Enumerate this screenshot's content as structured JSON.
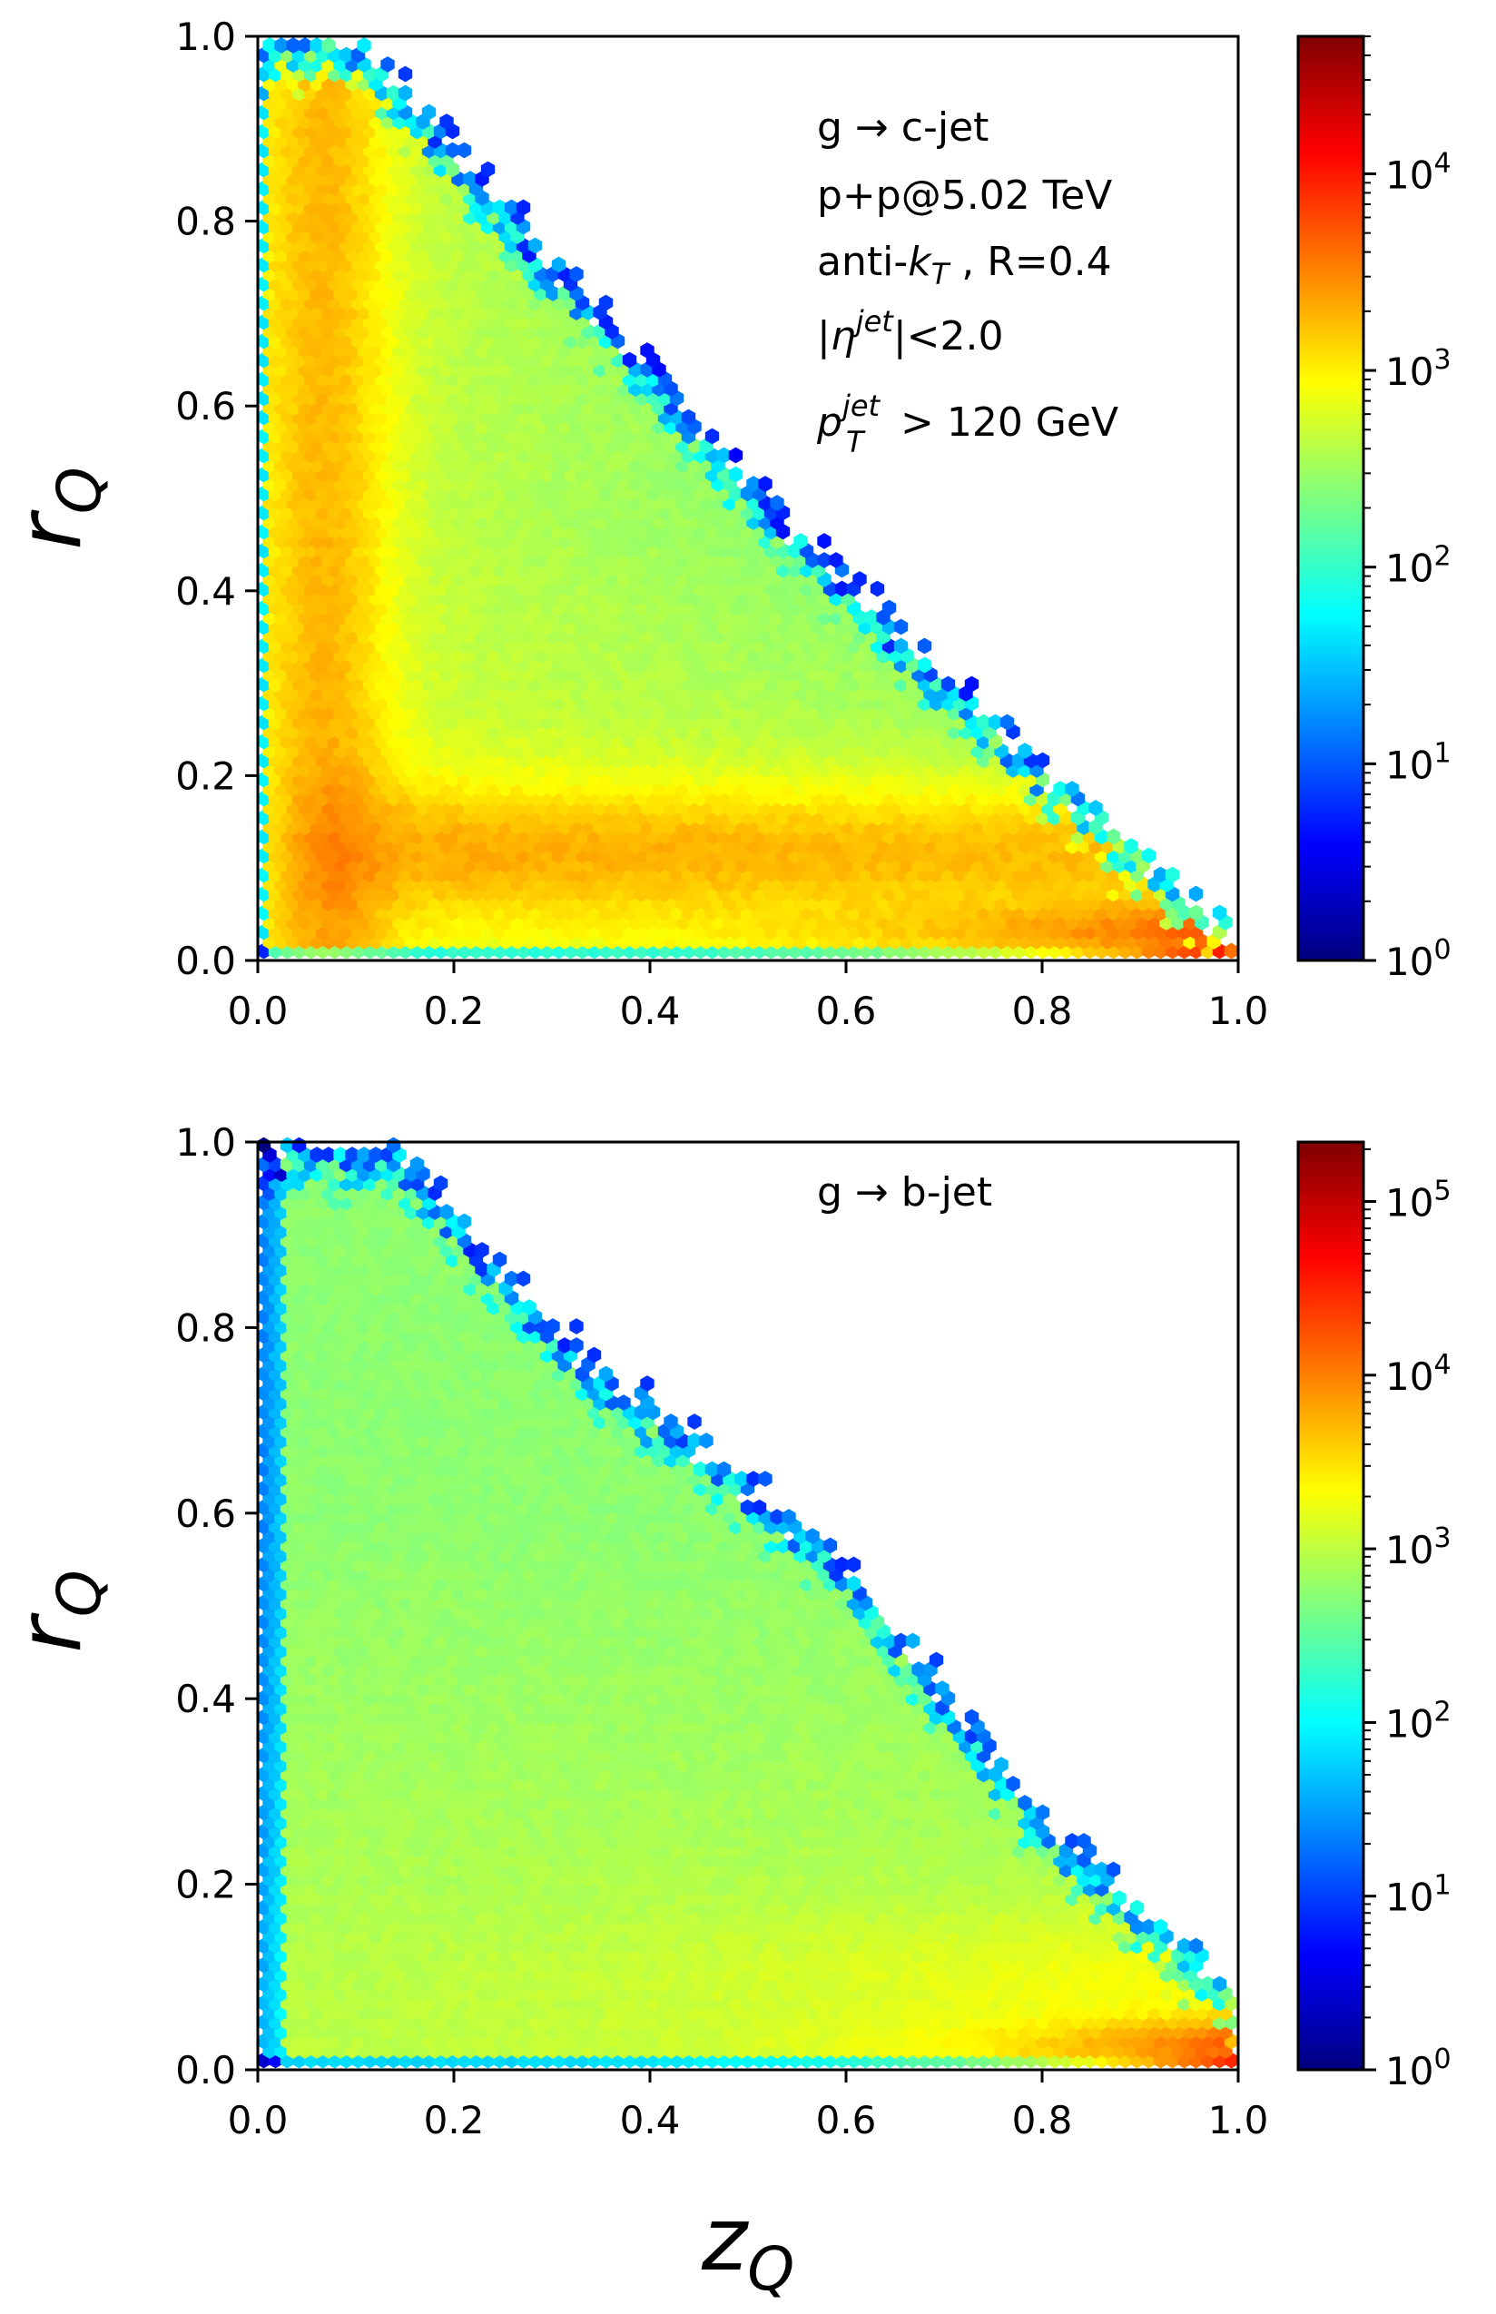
{
  "xlabel": "z",
  "xlabel_sub": "Q",
  "ylabel": "r",
  "ylabel_sub": "Q",
  "colormap": [
    "#00007f",
    "#0000ff",
    "#007fff",
    "#00ffff",
    "#7fff7f",
    "#ffff00",
    "#ff7f00",
    "#ff0000",
    "#7f0000"
  ],
  "chart_data": [
    {
      "type": "heatmap",
      "bins": "hexagonal",
      "title": "",
      "xlim": [
        0.0,
        1.0
      ],
      "ylim": [
        0.0,
        1.0
      ],
      "xticks": [
        "0.0",
        "0.2",
        "0.4",
        "0.6",
        "0.8",
        "1.0"
      ],
      "yticks": [
        "0.0",
        "0.2",
        "0.4",
        "0.6",
        "0.8",
        "1.0"
      ],
      "colorbar": {
        "scale": "log",
        "min": 1,
        "max": 50000,
        "ticks": [
          {
            "value": 1,
            "base": "10",
            "exp": "0"
          },
          {
            "value": 10,
            "base": "10",
            "exp": "1"
          },
          {
            "value": 100,
            "base": "10",
            "exp": "2"
          },
          {
            "value": 1000,
            "base": "10",
            "exp": "3"
          },
          {
            "value": 10000,
            "base": "10",
            "exp": "4"
          }
        ]
      },
      "annotation": {
        "line1": "g  →  c-jet",
        "line2": "p+p@5.02 TeV",
        "line3_pre": "anti-",
        "line3_k": "k",
        "line3_T": "T",
        "line3_post": " , R=0.4",
        "line4_pre": "|",
        "line4_eta": "η",
        "line4_sup": "jet",
        "line4_post": "|<2.0",
        "line5_p": "p",
        "line5_sup": "jet",
        "line5_sub": "T",
        "line5_post": " > 120 GeV"
      },
      "density_profile": {
        "boundary": [
          [
            0.0,
            1.0
          ],
          [
            0.1,
            1.0
          ],
          [
            0.2,
            0.88
          ],
          [
            0.5,
            0.52
          ],
          [
            0.8,
            0.21
          ],
          [
            1.0,
            0.02
          ]
        ],
        "peak": 40000,
        "notes": "max at z≈0.95, r≈0.01; high along r≈0.05–0.15 band and z≈0.02–0.1 band"
      }
    },
    {
      "type": "heatmap",
      "bins": "hexagonal",
      "title": "",
      "xlim": [
        0.0,
        1.0
      ],
      "ylim": [
        0.0,
        1.0
      ],
      "xticks": [
        "0.0",
        "0.2",
        "0.4",
        "0.6",
        "0.8",
        "1.0"
      ],
      "yticks": [
        "0.0",
        "0.2",
        "0.4",
        "0.6",
        "0.8",
        "1.0"
      ],
      "colorbar": {
        "scale": "log",
        "min": 1,
        "max": 220000,
        "ticks": [
          {
            "value": 1,
            "base": "10",
            "exp": "0"
          },
          {
            "value": 10,
            "base": "10",
            "exp": "1"
          },
          {
            "value": 100,
            "base": "10",
            "exp": "2"
          },
          {
            "value": 1000,
            "base": "10",
            "exp": "3"
          },
          {
            "value": 10000,
            "base": "10",
            "exp": "4"
          },
          {
            "value": 100000,
            "base": "10",
            "exp": "5"
          }
        ]
      },
      "annotation": {
        "line1": "g  →  b-jet"
      },
      "density_profile": {
        "boundary": [
          [
            0.0,
            1.0
          ],
          [
            0.14,
            1.0
          ],
          [
            0.3,
            0.8
          ],
          [
            0.6,
            0.55
          ],
          [
            0.8,
            0.27
          ],
          [
            1.0,
            0.08
          ]
        ],
        "peak": 30000,
        "notes": "max at z≈0.97, r≈0.01; orange band along r≈0.05–0.1 at high z"
      }
    }
  ]
}
